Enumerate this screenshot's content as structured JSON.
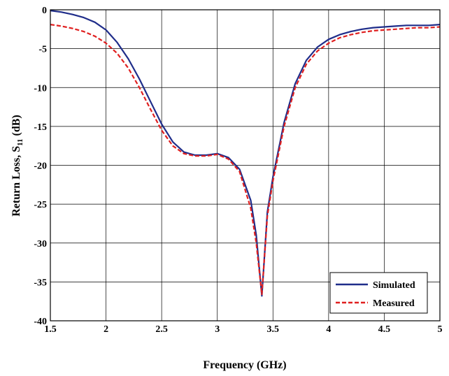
{
  "chart_data": {
    "type": "line",
    "xlabel": "Frequency (GHz)",
    "ylabel": {
      "main": "Return Loss, S",
      "sub": "11",
      "unit": " (dB)"
    },
    "xlim": [
      1.5,
      5
    ],
    "ylim": [
      -40,
      0
    ],
    "xticks": [
      "1.5",
      "2",
      "2.5",
      "3",
      "3.5",
      "4",
      "4.5",
      "5"
    ],
    "yticks": [
      "0",
      "-5",
      "-10",
      "-15",
      "-20",
      "-25",
      "-30",
      "-35",
      "-40"
    ],
    "grid": true,
    "legend_position": "bottom-right",
    "series": [
      {
        "name": "Simulated",
        "color": "#1f2d8a",
        "style": "solid",
        "x": [
          1.5,
          1.6,
          1.7,
          1.8,
          1.9,
          2.0,
          2.1,
          2.2,
          2.3,
          2.4,
          2.5,
          2.6,
          2.7,
          2.8,
          2.9,
          3.0,
          3.1,
          3.2,
          3.3,
          3.35,
          3.4,
          3.45,
          3.5,
          3.6,
          3.7,
          3.8,
          3.9,
          4.0,
          4.1,
          4.2,
          4.3,
          4.4,
          4.5,
          4.6,
          4.7,
          4.8,
          4.9,
          5.0
        ],
        "y": [
          -0.1,
          -0.3,
          -0.6,
          -1.0,
          -1.6,
          -2.6,
          -4.2,
          -6.3,
          -8.9,
          -11.8,
          -14.7,
          -17.0,
          -18.3,
          -18.7,
          -18.7,
          -18.5,
          -19.0,
          -20.5,
          -24.5,
          -29.0,
          -36.8,
          -26.0,
          -21.5,
          -14.5,
          -9.5,
          -6.5,
          -4.8,
          -3.8,
          -3.2,
          -2.8,
          -2.5,
          -2.3,
          -2.2,
          -2.1,
          -2.0,
          -2.0,
          -2.0,
          -1.9
        ]
      },
      {
        "name": "Measured",
        "color": "#e02020",
        "style": "dashed",
        "x": [
          1.5,
          1.6,
          1.7,
          1.8,
          1.9,
          2.0,
          2.1,
          2.2,
          2.3,
          2.4,
          2.5,
          2.6,
          2.7,
          2.8,
          2.9,
          3.0,
          3.1,
          3.2,
          3.3,
          3.35,
          3.4,
          3.45,
          3.5,
          3.6,
          3.7,
          3.8,
          3.9,
          4.0,
          4.1,
          4.2,
          4.3,
          4.4,
          4.5,
          4.6,
          4.7,
          4.8,
          4.9,
          5.0
        ],
        "y": [
          -1.9,
          -2.1,
          -2.4,
          -2.8,
          -3.4,
          -4.3,
          -5.6,
          -7.5,
          -10.0,
          -12.8,
          -15.5,
          -17.5,
          -18.5,
          -18.8,
          -18.8,
          -18.6,
          -19.2,
          -20.8,
          -25.5,
          -30.0,
          -36.6,
          -26.5,
          -22.0,
          -15.0,
          -10.0,
          -7.0,
          -5.3,
          -4.3,
          -3.6,
          -3.2,
          -2.9,
          -2.7,
          -2.6,
          -2.5,
          -2.4,
          -2.3,
          -2.3,
          -2.2
        ]
      }
    ]
  }
}
